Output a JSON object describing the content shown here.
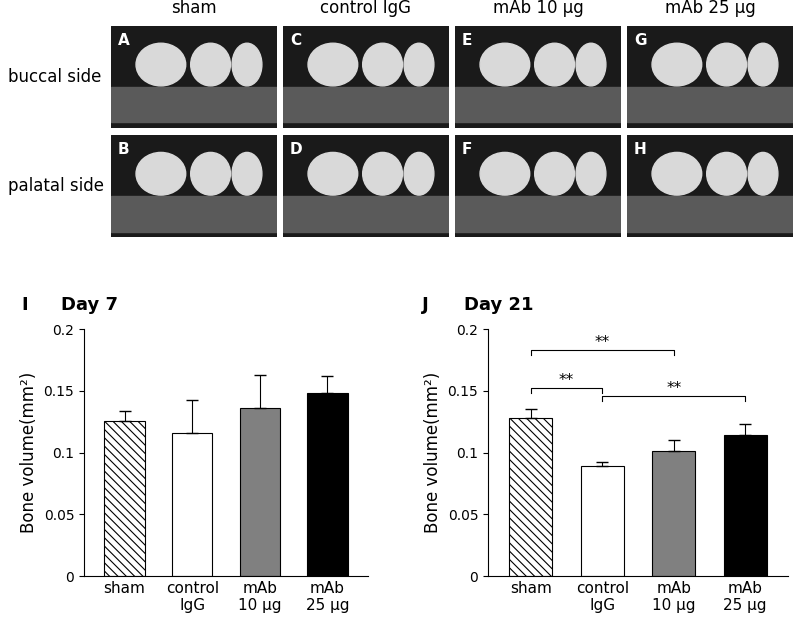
{
  "image_grid": {
    "columns": [
      "sham",
      "control IgG",
      "mAb 10 μg",
      "mAb 25 μg"
    ],
    "rows": [
      "buccal side",
      "palatal side"
    ],
    "panels": [
      [
        "A",
        "C",
        "E",
        "G"
      ],
      [
        "B",
        "D",
        "F",
        "H"
      ]
    ]
  },
  "chart_data": [
    {
      "type": "bar",
      "panel": "I",
      "title": "Day 7",
      "categories": [
        "sham",
        "control\nIgG",
        "mAb\n10 μg",
        "mAb\n25 μg"
      ],
      "values": [
        0.126,
        0.116,
        0.136,
        0.148
      ],
      "error": [
        0.008,
        0.027,
        0.027,
        0.014
      ],
      "colors": [
        "#ffffff",
        "#ffffff",
        "#808080",
        "#000000"
      ],
      "y_label": "Bone volume(mm²)",
      "ylim": [
        0,
        0.2
      ],
      "yticks": [
        0,
        0.05,
        0.1,
        0.15,
        0.2
      ]
    },
    {
      "type": "bar",
      "panel": "J",
      "title": "Day 21",
      "categories": [
        "sham",
        "control\nIgG",
        "mAb\n10 μg",
        "mAb\n25 μg"
      ],
      "values": [
        0.128,
        0.089,
        0.101,
        0.114
      ],
      "error": [
        0.007,
        0.003,
        0.009,
        0.009
      ],
      "colors": [
        "#ffffff",
        "#ffffff",
        "#808080",
        "#000000"
      ],
      "y_label": "Bone volume(mm²)",
      "ylim": [
        0,
        0.2
      ],
      "yticks": [
        0,
        0.05,
        0.1,
        0.15,
        0.2
      ],
      "annotations": [
        {
          "from": 0,
          "to": 2,
          "y": 0.183,
          "label": "**"
        },
        {
          "from": 0,
          "to": 1,
          "y": 0.152,
          "label": "**"
        },
        {
          "from": 1,
          "to": 3,
          "y": 0.146,
          "label": "**"
        }
      ]
    }
  ]
}
